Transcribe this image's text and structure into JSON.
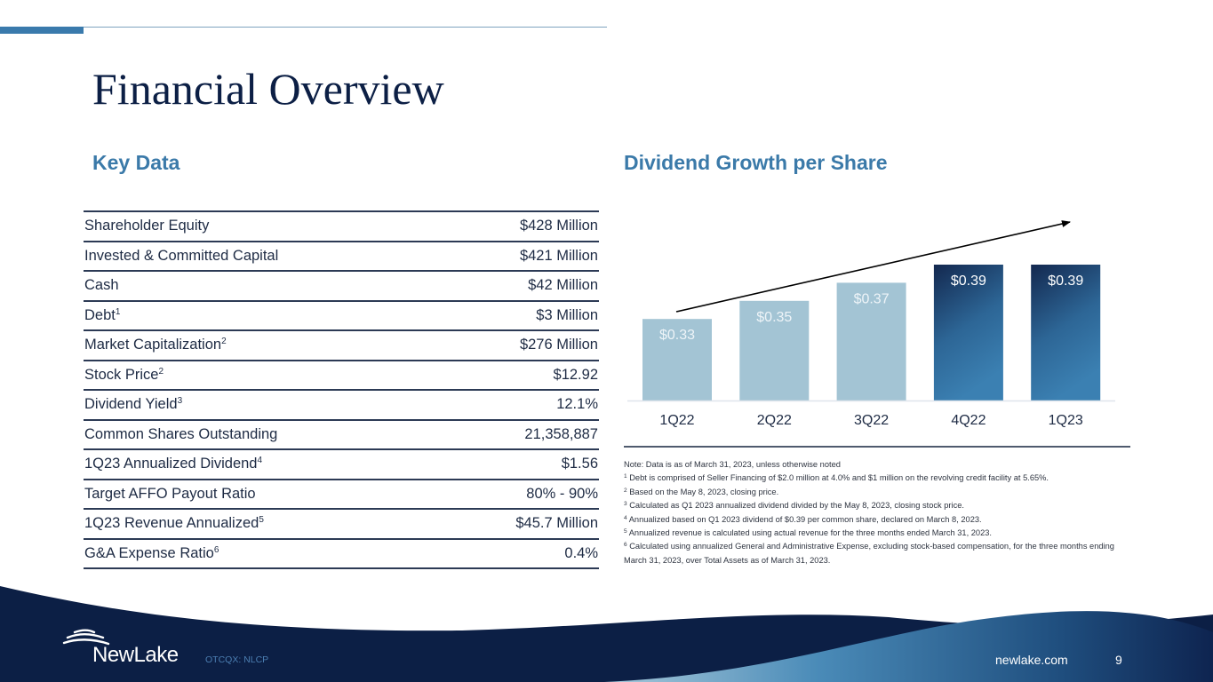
{
  "page": {
    "title": "Financial Overview",
    "number": "9",
    "website": "newlake.com",
    "ticker": "OTCQX: NLCP",
    "brand": "NewLake"
  },
  "colors": {
    "title": "#0c1f45",
    "section_heading": "#3b7aa9",
    "bar_light": "#a3c4d4",
    "bar_dark_top": "#13284f",
    "bar_dark_bottom": "#3b7fb0",
    "footer_navy": "#0c1f45"
  },
  "key_data": {
    "heading": "Key Data",
    "rows": [
      {
        "label": "Shareholder Equity",
        "sup": "",
        "value": "$428 Million"
      },
      {
        "label": "Invested & Committed Capital",
        "sup": "",
        "value": "$421 Million"
      },
      {
        "label": "Cash",
        "sup": "",
        "value": "$42 Million"
      },
      {
        "label": "Debt",
        "sup": "1",
        "value": "$3 Million"
      },
      {
        "label": "Market Capitalization",
        "sup": "2",
        "value": "$276 Million"
      },
      {
        "label": "Stock Price",
        "sup": "2",
        "value": "$12.92"
      },
      {
        "label": "Dividend Yield",
        "sup": "3",
        "value": "12.1%"
      },
      {
        "label": "Common Shares Outstanding",
        "sup": "",
        "value": "21,358,887"
      },
      {
        "label": "1Q23 Annualized Dividend",
        "sup": "4",
        "value": "$1.56"
      },
      {
        "label": "Target AFFO Payout Ratio",
        "sup": "",
        "value": "80% - 90%"
      },
      {
        "label": "1Q23 Revenue Annualized",
        "sup": "5",
        "value": "$45.7 Million"
      },
      {
        "label": "G&A Expense Ratio",
        "sup": "6",
        "value": "0.4%"
      }
    ]
  },
  "chart_data": {
    "type": "bar",
    "title": "Dividend Growth per Share",
    "xlabel": "",
    "ylabel": "",
    "categories": [
      "1Q22",
      "2Q22",
      "3Q22",
      "4Q22",
      "1Q23"
    ],
    "values": [
      0.33,
      0.35,
      0.37,
      0.39,
      0.39
    ],
    "data_labels": [
      "$0.33",
      "$0.35",
      "$0.37",
      "$0.39",
      "$0.39"
    ],
    "highlight": [
      false,
      false,
      false,
      true,
      true
    ],
    "ylim": [
      0.24,
      0.39
    ],
    "grid": false,
    "legend": "none",
    "annotations": [
      "upward trend arrow"
    ]
  },
  "notes": {
    "intro": "Note: Data is as of March 31, 2023, unless otherwise noted",
    "items": [
      {
        "sup": "1",
        "text": "Debt is comprised of Seller Financing of $2.0 million at 4.0% and $1 million on the revolving credit facility at 5.65%."
      },
      {
        "sup": "2",
        "text": "Based on the May 8, 2023, closing price."
      },
      {
        "sup": "3",
        "text": "Calculated as Q1 2023 annualized dividend divided by the May 8, 2023, closing stock price."
      },
      {
        "sup": "4",
        "text": "Annualized based on Q1 2023 dividend of $0.39 per common share, declared on March 8, 2023."
      },
      {
        "sup": "5",
        "text": "Annualized revenue is calculated using actual revenue for the three months ended March 31, 2023."
      },
      {
        "sup": "6",
        "text": "Calculated using annualized General and Administrative Expense, excluding stock-based compensation, for the three months ending March 31, 2023, over Total Assets as of March 31, 2023."
      }
    ]
  }
}
